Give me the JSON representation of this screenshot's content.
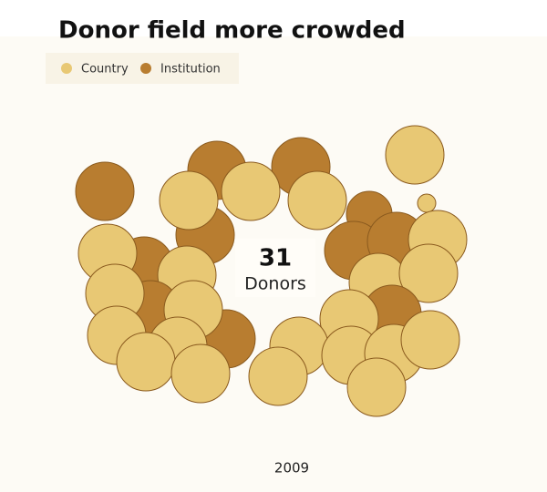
{
  "title": "Donor field more crowded",
  "legend": [
    {
      "name": "Country",
      "color": "#e8c874"
    },
    {
      "name": "Institution",
      "color": "#b87d30"
    }
  ],
  "center": {
    "count": "31",
    "label": "Donors"
  },
  "year": "2009"
}
